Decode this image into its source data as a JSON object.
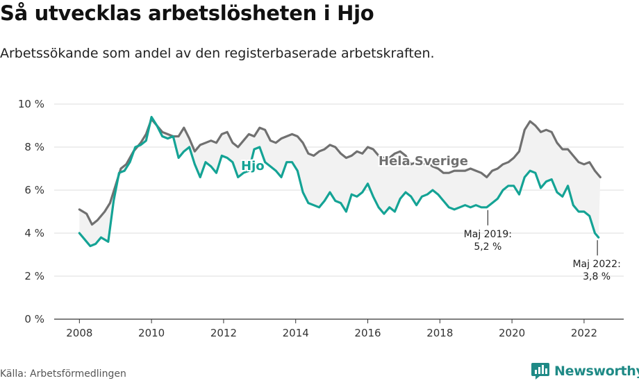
{
  "title": "Så utvecklas arbetslösheten i Hjo",
  "subtitle": "Arbetssökande som andel av den registerbaserade arbetskraften.",
  "source": "Källa: Arbetsförmedlingen",
  "brand": "Newsworthy",
  "colors": {
    "hjo": "#14a395",
    "sverige": "#707070",
    "fill": "#f2f2f2",
    "grid": "#dcdcdc",
    "brand": "#1f8a86"
  },
  "chart_data": {
    "type": "line",
    "title": "Så utvecklas arbetslösheten i Hjo",
    "xlabel": "",
    "ylabel": "",
    "ylim": [
      0,
      10
    ],
    "xlim": [
      2007.3,
      2023.1
    ],
    "y_ticks": [
      0,
      2,
      4,
      6,
      8,
      10
    ],
    "y_tick_labels": [
      "0 %",
      "2 %",
      "4 %",
      "6 %",
      "8 %",
      "10 %"
    ],
    "x_ticks": [
      2008,
      2010,
      2012,
      2014,
      2016,
      2018,
      2020,
      2022
    ],
    "x_tick_labels": [
      "2008",
      "2010",
      "2012",
      "2014",
      "2016",
      "2018",
      "2020",
      "2022"
    ],
    "series": [
      {
        "name": "Hela Sverige",
        "label": "Hela Sverige",
        "x": [
          2008.0,
          2008.2,
          2008.35,
          2008.5,
          2008.7,
          2008.85,
          2009.0,
          2009.15,
          2009.3,
          2009.5,
          2009.7,
          2009.85,
          2010.0,
          2010.15,
          2010.3,
          2010.45,
          2010.6,
          2010.75,
          2010.9,
          2011.05,
          2011.2,
          2011.35,
          2011.5,
          2011.65,
          2011.8,
          2011.95,
          2012.1,
          2012.25,
          2012.4,
          2012.55,
          2012.7,
          2012.85,
          2013.0,
          2013.15,
          2013.3,
          2013.45,
          2013.6,
          2013.75,
          2013.9,
          2014.05,
          2014.2,
          2014.35,
          2014.5,
          2014.65,
          2014.8,
          2014.95,
          2015.1,
          2015.25,
          2015.4,
          2015.55,
          2015.7,
          2015.85,
          2016.0,
          2016.15,
          2016.3,
          2016.45,
          2016.6,
          2016.75,
          2016.9,
          2017.05,
          2017.2,
          2017.35,
          2017.5,
          2017.65,
          2017.8,
          2017.95,
          2018.1,
          2018.25,
          2018.4,
          2018.55,
          2018.7,
          2018.85,
          2019.0,
          2019.15,
          2019.3,
          2019.45,
          2019.6,
          2019.75,
          2019.9,
          2020.05,
          2020.2,
          2020.35,
          2020.5,
          2020.65,
          2020.8,
          2020.95,
          2021.1,
          2021.25,
          2021.4,
          2021.55,
          2021.7,
          2021.85,
          2022.0,
          2022.15,
          2022.3,
          2022.45
        ],
        "values": [
          5.1,
          4.9,
          4.4,
          4.6,
          5.0,
          5.4,
          6.2,
          7.0,
          7.2,
          7.8,
          8.2,
          8.6,
          9.3,
          9.0,
          8.7,
          8.6,
          8.5,
          8.5,
          8.9,
          8.4,
          7.8,
          8.1,
          8.2,
          8.3,
          8.2,
          8.6,
          8.7,
          8.2,
          8.0,
          8.3,
          8.6,
          8.5,
          8.9,
          8.8,
          8.3,
          8.2,
          8.4,
          8.5,
          8.6,
          8.5,
          8.2,
          7.7,
          7.6,
          7.8,
          7.9,
          8.1,
          8.0,
          7.7,
          7.5,
          7.6,
          7.8,
          7.7,
          8.0,
          7.9,
          7.6,
          7.5,
          7.5,
          7.7,
          7.8,
          7.6,
          7.2,
          7.3,
          7.2,
          7.3,
          7.1,
          7.0,
          6.8,
          6.8,
          6.9,
          6.9,
          6.9,
          7.0,
          6.9,
          6.8,
          6.6,
          6.9,
          7.0,
          7.2,
          7.3,
          7.5,
          7.8,
          8.8,
          9.2,
          9.0,
          8.7,
          8.8,
          8.7,
          8.2,
          7.9,
          7.9,
          7.6,
          7.3,
          7.2,
          7.3,
          6.9,
          6.6
        ]
      },
      {
        "name": "Hjo",
        "label": "Hjo",
        "x": [
          2008.0,
          2008.15,
          2008.3,
          2008.45,
          2008.6,
          2008.8,
          2008.95,
          2009.1,
          2009.25,
          2009.4,
          2009.55,
          2009.7,
          2009.85,
          2010.0,
          2010.15,
          2010.3,
          2010.45,
          2010.6,
          2010.75,
          2010.9,
          2011.05,
          2011.2,
          2011.35,
          2011.5,
          2011.65,
          2011.8,
          2011.95,
          2012.1,
          2012.25,
          2012.4,
          2012.55,
          2012.7,
          2012.85,
          2013.0,
          2013.15,
          2013.3,
          2013.45,
          2013.6,
          2013.75,
          2013.9,
          2014.05,
          2014.2,
          2014.35,
          2014.5,
          2014.65,
          2014.8,
          2014.95,
          2015.1,
          2015.25,
          2015.4,
          2015.55,
          2015.7,
          2015.85,
          2016.0,
          2016.15,
          2016.3,
          2016.45,
          2016.6,
          2016.75,
          2016.9,
          2017.05,
          2017.2,
          2017.35,
          2017.5,
          2017.65,
          2017.8,
          2017.95,
          2018.1,
          2018.25,
          2018.4,
          2018.55,
          2018.7,
          2018.85,
          2019.0,
          2019.15,
          2019.3,
          2019.45,
          2019.6,
          2019.75,
          2019.9,
          2020.05,
          2020.2,
          2020.35,
          2020.5,
          2020.65,
          2020.8,
          2020.95,
          2021.1,
          2021.25,
          2021.4,
          2021.55,
          2021.7,
          2021.85,
          2022.0,
          2022.15,
          2022.3,
          2022.4
        ],
        "values": [
          4.0,
          3.7,
          3.4,
          3.5,
          3.8,
          3.6,
          5.5,
          6.8,
          6.9,
          7.3,
          8.0,
          8.1,
          8.3,
          9.4,
          9.0,
          8.5,
          8.4,
          8.5,
          7.5,
          7.8,
          8.0,
          7.2,
          6.6,
          7.3,
          7.1,
          6.8,
          7.6,
          7.5,
          7.3,
          6.6,
          6.8,
          6.9,
          7.9,
          8.0,
          7.3,
          7.1,
          6.9,
          6.6,
          7.3,
          7.3,
          6.9,
          5.9,
          5.4,
          5.3,
          5.2,
          5.5,
          5.9,
          5.5,
          5.4,
          5.0,
          5.8,
          5.7,
          5.9,
          6.3,
          5.7,
          5.2,
          4.9,
          5.2,
          5.0,
          5.6,
          5.9,
          5.7,
          5.3,
          5.7,
          5.8,
          6.0,
          5.8,
          5.5,
          5.2,
          5.1,
          5.2,
          5.3,
          5.2,
          5.3,
          5.2,
          5.2,
          5.4,
          5.6,
          6.0,
          6.2,
          6.2,
          5.8,
          6.6,
          6.9,
          6.8,
          6.1,
          6.4,
          6.5,
          5.9,
          5.7,
          6.2,
          5.3,
          5.0,
          5.0,
          4.8,
          4.0,
          3.8
        ]
      }
    ],
    "annotations": [
      {
        "x": 2019.33,
        "y": 5.2,
        "line1": "Maj 2019:",
        "line2": "5,2 %"
      },
      {
        "x": 2022.37,
        "y": 3.8,
        "line1": "Maj 2022:",
        "line2": "3,8 %"
      }
    ]
  }
}
